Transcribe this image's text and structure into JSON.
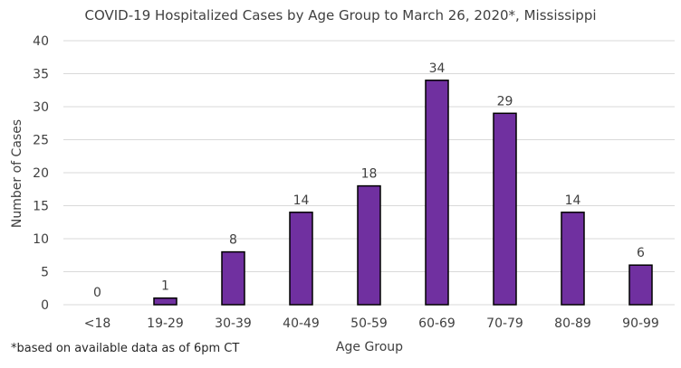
{
  "chart_data": {
    "type": "bar",
    "title": "COVID-19 Hospitalized Cases by Age Group to March 26, 2020*, Mississippi",
    "xlabel": "Age Group",
    "ylabel": "Number of Cases",
    "categories": [
      "<18",
      "19-29",
      "30-39",
      "40-49",
      "50-59",
      "60-69",
      "70-79",
      "80-89",
      "90-99"
    ],
    "values": [
      0,
      1,
      8,
      14,
      18,
      34,
      29,
      14,
      6
    ],
    "data_labels": [
      "0",
      "1",
      "8",
      "14",
      "18",
      "34",
      "29",
      "14",
      "6"
    ],
    "ylim": [
      0,
      40
    ],
    "yticks": [
      0,
      5,
      10,
      15,
      20,
      25,
      30,
      35,
      40
    ],
    "grid": true,
    "legend": "none",
    "bar_color": "#7030a0",
    "bar_outline_color": "#000000"
  },
  "footnote": "*based on available data as of 6pm CT"
}
